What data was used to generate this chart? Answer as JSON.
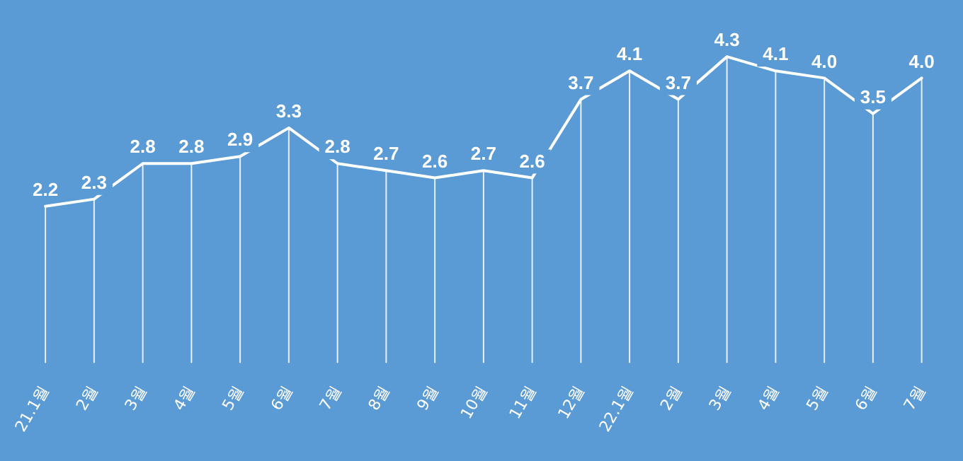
{
  "chart_data": {
    "type": "line",
    "categories": [
      "21.1월",
      "2월",
      "3월",
      "4월",
      "5월",
      "6월",
      "7월",
      "8월",
      "9월",
      "10월",
      "11월",
      "12월",
      "22.1월",
      "2월",
      "3월",
      "4월",
      "5월",
      "6월",
      "7월"
    ],
    "series": [
      {
        "color": "#ffffff",
        "values": [
          2.2,
          2.3,
          2.8,
          2.8,
          2.9,
          3.3,
          2.8,
          2.7,
          2.6,
          2.7,
          2.6,
          3.7,
          4.1,
          3.7,
          4.3,
          4.1,
          4.0,
          3.5,
          4.0
        ],
        "value_labels": [
          "2.2",
          "2.3",
          "2.8",
          "2.8",
          "2.9",
          "3.3",
          "2.8",
          "2.7",
          "2.6",
          "2.7",
          "2.6",
          "3.7",
          "4.1",
          "3.7",
          "4.3",
          "4.1",
          "4.0",
          "3.5",
          "4.0"
        ]
      }
    ],
    "legend": false,
    "grid": "x",
    "tick_labels": "x",
    "marker": "none",
    "line_style": "solid"
  }
}
